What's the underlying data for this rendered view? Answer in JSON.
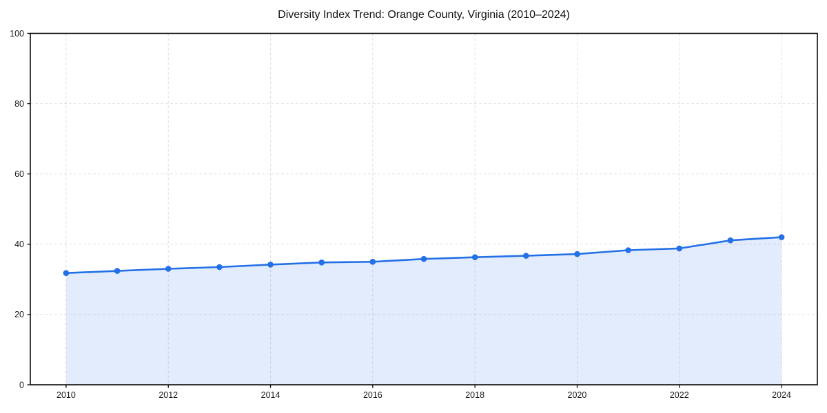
{
  "chart_data": {
    "type": "area",
    "title": "Diversity Index Trend: Orange County, Virginia (2010–2024)",
    "xlabel": "",
    "ylabel": "",
    "x": [
      2010,
      2011,
      2012,
      2013,
      2014,
      2015,
      2016,
      2017,
      2018,
      2019,
      2020,
      2021,
      2022,
      2023,
      2024
    ],
    "series": [
      {
        "name": "Diversity Index",
        "values": [
          31.8,
          32.4,
          33.0,
          33.5,
          34.2,
          34.8,
          35.0,
          35.8,
          36.3,
          36.7,
          37.2,
          38.3,
          38.8,
          41.1,
          42.0
        ]
      }
    ],
    "xlim": [
      2009.3,
      2024.7
    ],
    "ylim": [
      0,
      100
    ],
    "xticks": [
      2010,
      2012,
      2014,
      2016,
      2018,
      2020,
      2022,
      2024
    ],
    "yticks": [
      0,
      20,
      40,
      60,
      80,
      100
    ],
    "grid": true,
    "grid_style": "dashed",
    "legend_position": "none",
    "marker": "circle",
    "colors": {
      "line": "#2470e6",
      "fill": "#2470e6",
      "fill_opacity": 0.13,
      "grid": "#e0e0e0",
      "frame": "#0a0a0a",
      "tick_text": "#1a1a1a",
      "title_text": "#111111",
      "background": "#ffffff"
    }
  }
}
